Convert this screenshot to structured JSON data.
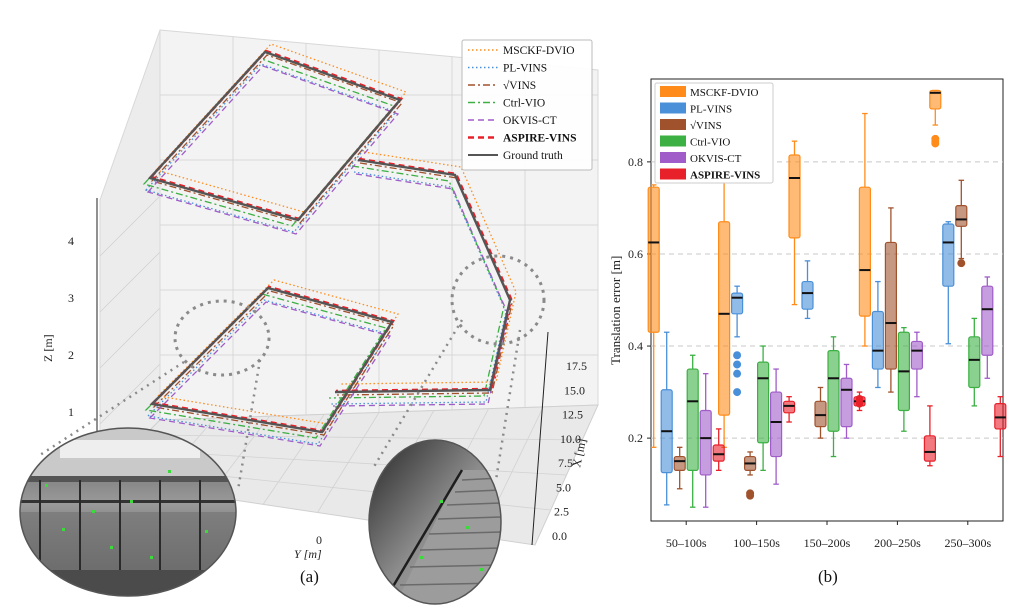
{
  "figure": {
    "left_caption": "(a)",
    "right_caption": "(b)"
  },
  "trajectory_plot": {
    "legend": [
      {
        "name": "MSCKF-DVIO",
        "color": "#ff8c1a",
        "dash": "dot"
      },
      {
        "name": "PL-VINS",
        "color": "#4a90d9",
        "dash": "dot"
      },
      {
        "name": "√VINS",
        "color": "#a0522d",
        "dash": "dashdot"
      },
      {
        "name": "Ctrl-VIO",
        "color": "#3cb043",
        "dash": "dashdot"
      },
      {
        "name": "OKVIS-CT",
        "color": "#a05cc8",
        "dash": "dash"
      },
      {
        "name": "ASPIRE-VINS",
        "color": "#e8202a",
        "dash": "dash",
        "bold": true
      },
      {
        "name": "Ground truth",
        "color": "#555555",
        "dash": "solid"
      }
    ],
    "z_axis": {
      "label": "Z [m]",
      "ticks": [
        "1",
        "2",
        "3",
        "4"
      ]
    },
    "x_axis": {
      "label": "X [m]",
      "ticks": [
        "0.0",
        "2.5",
        "5.0",
        "7.5",
        "10.0",
        "12.5",
        "15.0",
        "17.5"
      ]
    },
    "y_axis": {
      "label": "Y [m]",
      "ticks": [
        "0"
      ]
    }
  },
  "chart_data": {
    "type": "box",
    "ylabel": "Translation error [m]",
    "xlabel": "",
    "categories": [
      "50–100s",
      "100–150s",
      "150–200s",
      "200–250s",
      "250–300s"
    ],
    "ylim": [
      0.02,
      0.98
    ],
    "yticks": [
      "0.2",
      "0.4",
      "0.6",
      "0.8"
    ],
    "grid": "horizontal dashed",
    "legend_position": "top-left",
    "series": [
      {
        "name": "MSCKF-DVIO",
        "color": "#ff8c1a",
        "boxes": [
          {
            "whislo": 0.18,
            "q1": 0.43,
            "med": 0.625,
            "q3": 0.745,
            "whishi": 0.75,
            "fliers": []
          },
          {
            "whislo": 0.18,
            "q1": 0.25,
            "med": 0.47,
            "q3": 0.67,
            "whishi": 0.8,
            "fliers": []
          },
          {
            "whislo": 0.49,
            "q1": 0.635,
            "med": 0.765,
            "q3": 0.815,
            "whishi": 0.845,
            "fliers": []
          },
          {
            "whislo": 0.4,
            "q1": 0.465,
            "med": 0.565,
            "q3": 0.745,
            "whishi": 0.905,
            "fliers": []
          },
          {
            "whislo": 0.88,
            "q1": 0.915,
            "med": 0.95,
            "q3": 0.955,
            "whishi": 0.955,
            "fliers": [
              0.84,
              0.845,
              0.85
            ]
          }
        ]
      },
      {
        "name": "PL-VINS",
        "color": "#4a90d9",
        "boxes": [
          {
            "whislo": 0.055,
            "q1": 0.125,
            "med": 0.215,
            "q3": 0.305,
            "whishi": 0.43,
            "fliers": []
          },
          {
            "whislo": 0.42,
            "q1": 0.47,
            "med": 0.505,
            "q3": 0.515,
            "whishi": 0.53,
            "fliers": [
              0.3,
              0.34,
              0.36,
              0.38
            ]
          },
          {
            "whislo": 0.46,
            "q1": 0.48,
            "med": 0.515,
            "q3": 0.54,
            "whishi": 0.585,
            "fliers": []
          },
          {
            "whislo": 0.31,
            "q1": 0.35,
            "med": 0.39,
            "q3": 0.475,
            "whishi": 0.54,
            "fliers": []
          },
          {
            "whislo": 0.405,
            "q1": 0.53,
            "med": 0.625,
            "q3": 0.665,
            "whishi": 0.67,
            "fliers": []
          }
        ]
      },
      {
        "name": "√VINS",
        "color": "#a0522d",
        "boxes": [
          {
            "whislo": 0.09,
            "q1": 0.13,
            "med": 0.15,
            "q3": 0.16,
            "whishi": 0.18,
            "fliers": []
          },
          {
            "whislo": 0.12,
            "q1": 0.13,
            "med": 0.145,
            "q3": 0.16,
            "whishi": 0.17,
            "fliers": [
              0.075,
              0.08
            ]
          },
          {
            "whislo": 0.2,
            "q1": 0.225,
            "med": 0.25,
            "q3": 0.28,
            "whishi": 0.31,
            "fliers": []
          },
          {
            "whislo": 0.3,
            "q1": 0.35,
            "med": 0.45,
            "q3": 0.625,
            "whishi": 0.7,
            "fliers": []
          },
          {
            "whislo": 0.59,
            "q1": 0.66,
            "med": 0.675,
            "q3": 0.705,
            "whishi": 0.76,
            "fliers": [
              0.58
            ]
          }
        ]
      },
      {
        "name": "Ctrl-VIO",
        "color": "#3cb043",
        "boxes": [
          {
            "whislo": 0.05,
            "q1": 0.13,
            "med": 0.28,
            "q3": 0.35,
            "whishi": 0.38,
            "fliers": []
          },
          {
            "whislo": 0.13,
            "q1": 0.19,
            "med": 0.33,
            "q3": 0.365,
            "whishi": 0.4,
            "fliers": []
          },
          {
            "whislo": 0.16,
            "q1": 0.215,
            "med": 0.33,
            "q3": 0.39,
            "whishi": 0.42,
            "fliers": []
          },
          {
            "whislo": 0.215,
            "q1": 0.26,
            "med": 0.345,
            "q3": 0.43,
            "whishi": 0.44,
            "fliers": []
          },
          {
            "whislo": 0.27,
            "q1": 0.31,
            "med": 0.37,
            "q3": 0.42,
            "whishi": 0.46,
            "fliers": []
          }
        ]
      },
      {
        "name": "OKVIS-CT",
        "color": "#a05cc8",
        "boxes": [
          {
            "whislo": 0.05,
            "q1": 0.12,
            "med": 0.2,
            "q3": 0.26,
            "whishi": 0.34,
            "fliers": []
          },
          {
            "whislo": 0.1,
            "q1": 0.16,
            "med": 0.235,
            "q3": 0.3,
            "whishi": 0.35,
            "fliers": []
          },
          {
            "whislo": 0.2,
            "q1": 0.225,
            "med": 0.305,
            "q3": 0.33,
            "whishi": 0.36,
            "fliers": []
          },
          {
            "whislo": 0.29,
            "q1": 0.35,
            "med": 0.39,
            "q3": 0.41,
            "whishi": 0.43,
            "fliers": []
          },
          {
            "whislo": 0.33,
            "q1": 0.38,
            "med": 0.48,
            "q3": 0.53,
            "whishi": 0.55,
            "fliers": []
          }
        ]
      },
      {
        "name": "ASPIRE-VINS",
        "color": "#e8202a",
        "bold": true,
        "boxes": [
          {
            "whislo": 0.13,
            "q1": 0.15,
            "med": 0.165,
            "q3": 0.185,
            "whishi": 0.22,
            "fliers": []
          },
          {
            "whislo": 0.235,
            "q1": 0.255,
            "med": 0.27,
            "q3": 0.28,
            "whishi": 0.29,
            "fliers": []
          },
          {
            "whislo": 0.26,
            "q1": 0.27,
            "med": 0.28,
            "q3": 0.29,
            "whishi": 0.3,
            "fliers": [
              0.275,
              0.285
            ]
          },
          {
            "whislo": 0.14,
            "q1": 0.15,
            "med": 0.17,
            "q3": 0.205,
            "whishi": 0.27,
            "fliers": []
          },
          {
            "whislo": 0.16,
            "q1": 0.22,
            "med": 0.245,
            "q3": 0.275,
            "whishi": 0.29,
            "fliers": []
          }
        ]
      }
    ]
  }
}
